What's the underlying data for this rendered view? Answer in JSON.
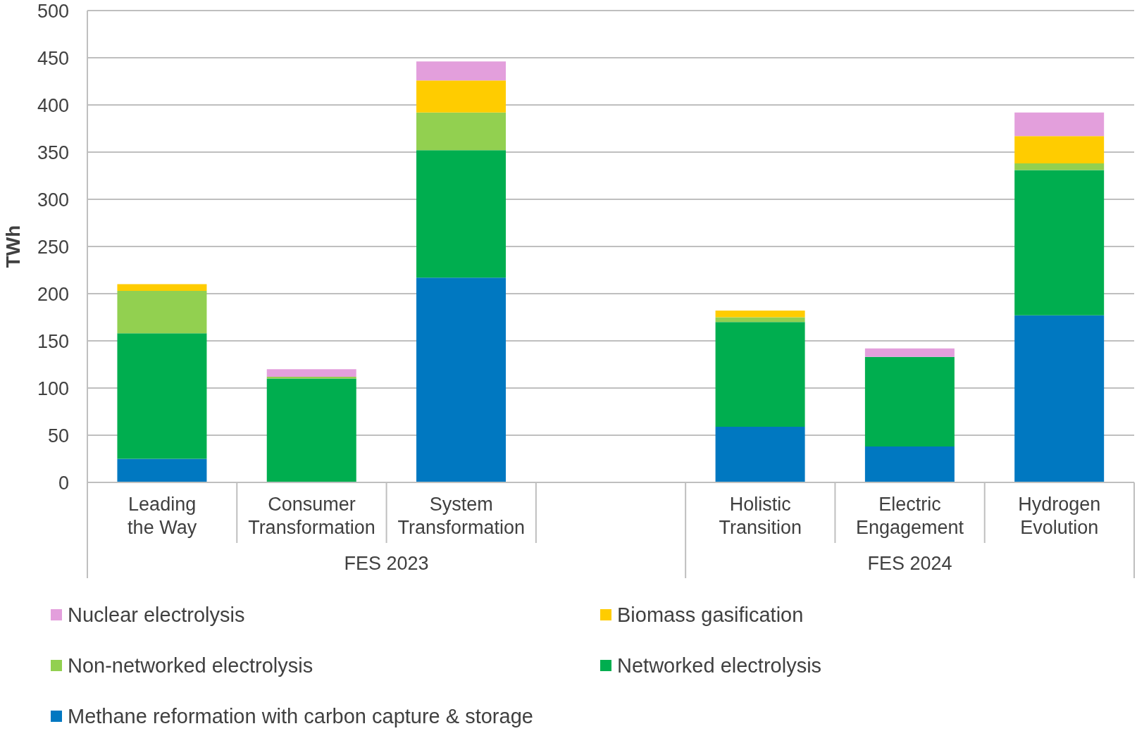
{
  "chart_data": {
    "type": "bar",
    "stacked": true,
    "ylabel": "TWh",
    "categories": [
      "Leading the Way",
      "Consumer Transformation",
      "System Transformation",
      null,
      "Holistic Transition",
      "Electric Engagement",
      "Hydrogen Evolution"
    ],
    "series": [
      {
        "name": "Methane reformation with carbon capture & storage",
        "color": "#0078c1",
        "values": [
          25,
          0,
          217,
          null,
          59,
          38,
          177
        ]
      },
      {
        "name": "Networked electrolysis",
        "color": "#00ae4f",
        "values": [
          133,
          110,
          135,
          null,
          111,
          95,
          154
        ]
      },
      {
        "name": "Non-networked electrolysis",
        "color": "#92d050",
        "values": [
          45,
          2,
          40,
          null,
          5,
          0,
          7
        ]
      },
      {
        "name": "Biomass gasification",
        "color": "#ffcc00",
        "values": [
          7,
          0,
          34,
          null,
          7,
          0,
          29
        ]
      },
      {
        "name": "Nuclear electrolysis",
        "color": "#e39fdc",
        "values": [
          0,
          8,
          20,
          null,
          0,
          9,
          25
        ]
      }
    ],
    "ylim": [
      0,
      500
    ],
    "yticks": [
      0,
      50,
      100,
      150,
      200,
      250,
      300,
      350,
      400,
      450,
      500
    ],
    "grid": "y",
    "legend": "bottom",
    "annotations": [
      "FES 2023",
      "FES 2024"
    ]
  }
}
